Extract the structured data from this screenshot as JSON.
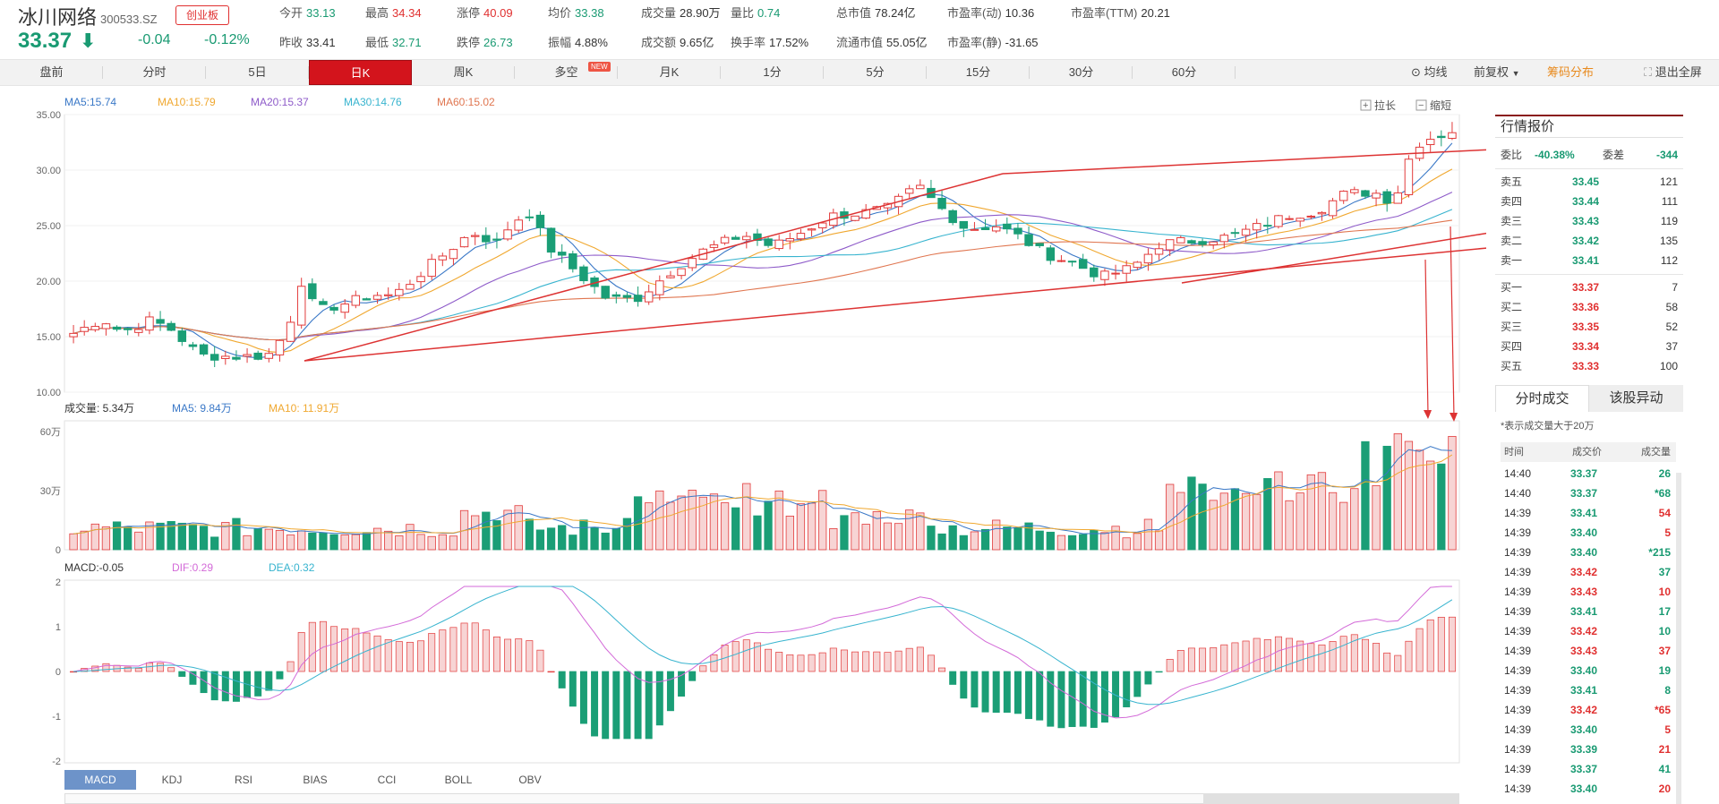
{
  "header": {
    "name": "冰川网络",
    "code": "300533.SZ",
    "board": "创业板",
    "price": "33.37",
    "change": "-0.04",
    "change_pct": "-0.12%",
    "stats": [
      {
        "k": "今开",
        "v": "33.13",
        "c": "green"
      },
      {
        "k": "昨收",
        "v": "33.41",
        "c": "plain"
      },
      {
        "k": "最高",
        "v": "34.34",
        "c": "red"
      },
      {
        "k": "最低",
        "v": "32.71",
        "c": "green"
      },
      {
        "k": "涨停",
        "v": "40.09",
        "c": "red"
      },
      {
        "k": "跌停",
        "v": "26.73",
        "c": "green"
      },
      {
        "k": "均价",
        "v": "33.38",
        "c": "green"
      },
      {
        "k": "振幅",
        "v": "4.88%",
        "c": "plain"
      },
      {
        "k": "成交量",
        "v": "28.90万",
        "c": "plain"
      },
      {
        "k": "成交额",
        "v": "9.65亿",
        "c": "plain"
      },
      {
        "k": "量比",
        "v": "0.74",
        "c": "green"
      },
      {
        "k": "换手率",
        "v": "17.52%",
        "c": "plain"
      },
      {
        "k": "总市值",
        "v": "78.24亿",
        "c": "plain"
      },
      {
        "k": "流通市值",
        "v": "55.05亿",
        "c": "plain"
      },
      {
        "k": "市盈率(动)",
        "v": "10.36",
        "c": "plain"
      },
      {
        "k": "市盈率(静)",
        "v": "-31.65",
        "c": "plain"
      },
      {
        "k": "市盈率(TTM)",
        "v": "20.21",
        "c": "plain"
      }
    ]
  },
  "periods": [
    {
      "label": "盘前"
    },
    {
      "label": "分时"
    },
    {
      "label": "5日"
    },
    {
      "label": "日K",
      "active": true
    },
    {
      "label": "周K"
    },
    {
      "label": "多空",
      "badge": "NEW"
    },
    {
      "label": "月K"
    },
    {
      "label": "1分"
    },
    {
      "label": "5分"
    },
    {
      "label": "15分"
    },
    {
      "label": "30分"
    },
    {
      "label": "60分"
    }
  ],
  "tools": {
    "ma": "均线",
    "adjust": "前复权",
    "chip": "筹码分布",
    "fullscreen": "退出全屏"
  },
  "chart_data": [
    {
      "type": "candlestick",
      "legend": [
        {
          "label": "MA5:15.74",
          "color": "#3a78c7"
        },
        {
          "label": "MA10:15.79",
          "color": "#f0a830"
        },
        {
          "label": "MA20:15.37",
          "color": "#8e5bc9"
        },
        {
          "label": "MA30:14.76",
          "color": "#38b4cf"
        },
        {
          "label": "MA60:15.02",
          "color": "#e07650"
        }
      ],
      "yticks": [
        "35.00",
        "30.00",
        "25.00",
        "20.00",
        "15.00",
        "10.00"
      ],
      "ylim": [
        10,
        35
      ],
      "controls": {
        "zoom_in": "拉长",
        "zoom_out": "缩短"
      },
      "note": "约 128 根日K线，价格区间约 12.8 至 34.34"
    },
    {
      "type": "bar",
      "legend": [
        {
          "label": "成交量: 5.34万",
          "color": "#333"
        },
        {
          "label": "MA5: 9.84万",
          "color": "#3a78c7"
        },
        {
          "label": "MA10: 11.91万",
          "color": "#f0a830"
        }
      ],
      "yticks": [
        "60万",
        "30万",
        "0"
      ],
      "ylim": [
        0,
        60
      ]
    },
    {
      "type": "bar",
      "legend": [
        {
          "label": "MACD:-0.05",
          "color": "#333"
        },
        {
          "label": "DIF:0.29",
          "color": "#d36ad8"
        },
        {
          "label": "DEA:0.32",
          "color": "#38b4cf"
        }
      ],
      "yticks": [
        "2",
        "1",
        "0",
        "-1",
        "-2"
      ],
      "ylim": [
        -2,
        2
      ]
    }
  ],
  "indicators": [
    "MACD",
    "KDJ",
    "RSI",
    "BIAS",
    "CCI",
    "BOLL",
    "OBV"
  ],
  "panel": {
    "title": "行情报价",
    "weibi_label": "委比",
    "weibi": "-40.38%",
    "weicha_label": "委差",
    "weicha": "-344",
    "asks": [
      {
        "n": "卖五",
        "p": "33.45",
        "q": "121"
      },
      {
        "n": "卖四",
        "p": "33.44",
        "q": "111"
      },
      {
        "n": "卖三",
        "p": "33.43",
        "q": "119"
      },
      {
        "n": "卖二",
        "p": "33.42",
        "q": "135"
      },
      {
        "n": "卖一",
        "p": "33.41",
        "q": "112"
      }
    ],
    "bids": [
      {
        "n": "买一",
        "p": "33.37",
        "q": "7"
      },
      {
        "n": "买二",
        "p": "33.36",
        "q": "58"
      },
      {
        "n": "买三",
        "p": "33.35",
        "q": "52"
      },
      {
        "n": "买四",
        "p": "33.34",
        "q": "37"
      },
      {
        "n": "买五",
        "p": "33.33",
        "q": "100"
      }
    ],
    "tab_trades": "分时成交",
    "tab_alerts": "该股异动",
    "note": "*表示成交量大于20万",
    "head": {
      "time": "时间",
      "price": "成交价",
      "vol": "成交量"
    },
    "trades": [
      {
        "t": "14:40",
        "p": "33.37",
        "v": "26",
        "pc": "green",
        "vc": "green"
      },
      {
        "t": "14:40",
        "p": "33.37",
        "v": "*68",
        "pc": "green",
        "vc": "green"
      },
      {
        "t": "14:39",
        "p": "33.41",
        "v": "54",
        "pc": "green",
        "vc": "red"
      },
      {
        "t": "14:39",
        "p": "33.40",
        "v": "5",
        "pc": "green",
        "vc": "red"
      },
      {
        "t": "14:39",
        "p": "33.40",
        "v": "*215",
        "pc": "green",
        "vc": "green"
      },
      {
        "t": "14:39",
        "p": "33.42",
        "v": "37",
        "pc": "red",
        "vc": "green"
      },
      {
        "t": "14:39",
        "p": "33.43",
        "v": "10",
        "pc": "red",
        "vc": "red"
      },
      {
        "t": "14:39",
        "p": "33.41",
        "v": "17",
        "pc": "green",
        "vc": "green"
      },
      {
        "t": "14:39",
        "p": "33.42",
        "v": "10",
        "pc": "red",
        "vc": "green"
      },
      {
        "t": "14:39",
        "p": "33.43",
        "v": "37",
        "pc": "red",
        "vc": "red"
      },
      {
        "t": "14:39",
        "p": "33.40",
        "v": "19",
        "pc": "green",
        "vc": "green"
      },
      {
        "t": "14:39",
        "p": "33.41",
        "v": "8",
        "pc": "green",
        "vc": "green"
      },
      {
        "t": "14:39",
        "p": "33.42",
        "v": "*65",
        "pc": "red",
        "vc": "red"
      },
      {
        "t": "14:39",
        "p": "33.40",
        "v": "5",
        "pc": "green",
        "vc": "red"
      },
      {
        "t": "14:39",
        "p": "33.39",
        "v": "21",
        "pc": "green",
        "vc": "red"
      },
      {
        "t": "14:39",
        "p": "33.37",
        "v": "41",
        "pc": "green",
        "vc": "green"
      },
      {
        "t": "14:39",
        "p": "33.40",
        "v": "20",
        "pc": "green",
        "vc": "red"
      }
    ]
  }
}
